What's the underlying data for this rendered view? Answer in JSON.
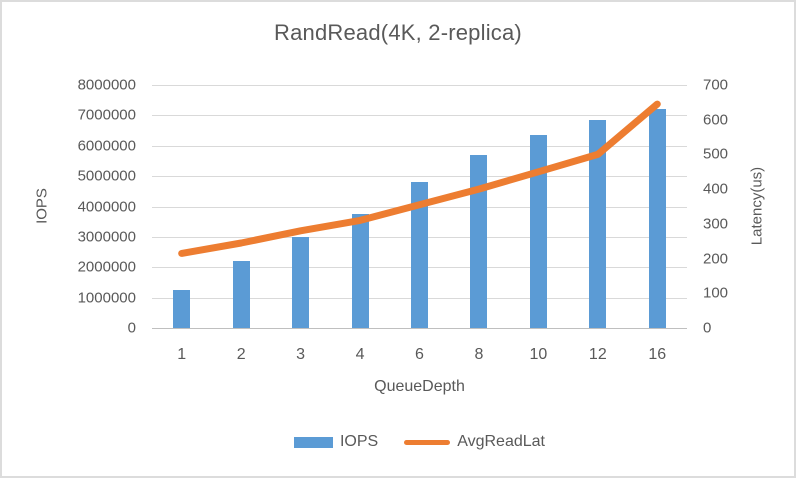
{
  "frame": {
    "background": "#ffffff",
    "border_color": "#dcdcdc"
  },
  "chart_data": {
    "type": "combo-bar-line",
    "title": "RandRead(4K, 2-replica)",
    "categories": [
      "1",
      "2",
      "3",
      "4",
      "6",
      "8",
      "10",
      "12",
      "16"
    ],
    "x_axis": {
      "title": "QueueDepth"
    },
    "left_axis": {
      "title": "IOPS",
      "min": 0,
      "max": 8000000,
      "step": 1000000,
      "tick_labels": [
        "0",
        "1000000",
        "2000000",
        "3000000",
        "4000000",
        "5000000",
        "6000000",
        "7000000",
        "8000000"
      ]
    },
    "right_axis": {
      "title": "Latency(us)",
      "min": 0,
      "max": 700,
      "step": 100,
      "tick_labels": [
        "0",
        "100",
        "200",
        "300",
        "400",
        "500",
        "600",
        "700"
      ]
    },
    "series": [
      {
        "name": "IOPS",
        "type": "bar",
        "axis": "left",
        "color": "#5b9bd5",
        "values": [
          1250000,
          2200000,
          3000000,
          3750000,
          4800000,
          5700000,
          6350000,
          6850000,
          7200000
        ]
      },
      {
        "name": "AvgReadLat",
        "type": "line",
        "axis": "right",
        "color": "#ed7d31",
        "values": [
          215,
          245,
          280,
          310,
          355,
          400,
          450,
          500,
          645
        ]
      }
    ],
    "grid": {
      "show": true,
      "color": "#d9d9d9",
      "zero_line_color": "#bfbfbf"
    },
    "legend": {
      "position": "bottom",
      "entries": [
        "IOPS",
        "AvgReadLat"
      ]
    },
    "text_color": "#595959"
  }
}
